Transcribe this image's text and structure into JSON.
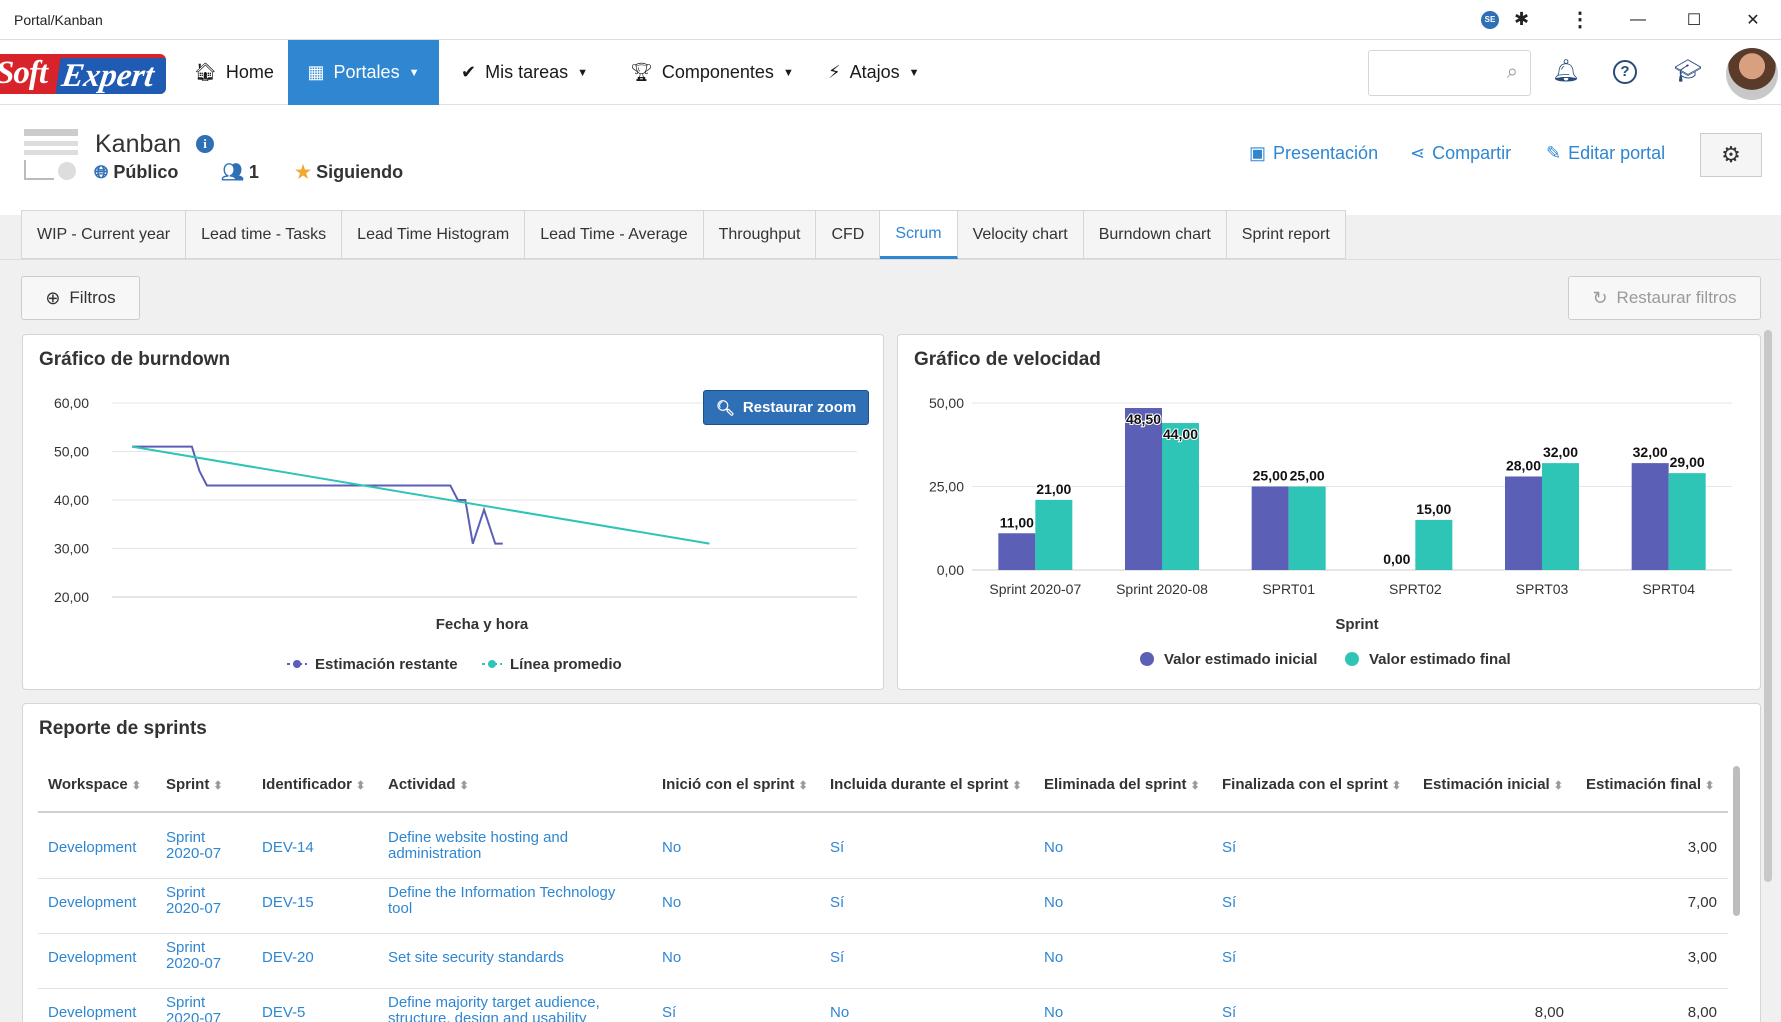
{
  "window": {
    "title": "Portal/Kanban",
    "badge": "SE"
  },
  "nav": {
    "logo_part1": "Soft",
    "logo_part2": "Expert",
    "items": [
      {
        "label": "Home"
      },
      {
        "label": "Portales"
      },
      {
        "label": "Mis tareas"
      },
      {
        "label": "Componentes"
      },
      {
        "label": "Atajos"
      }
    ],
    "search_placeholder": ""
  },
  "header": {
    "title": "Kanban",
    "visibility": "Público",
    "members": "1",
    "following": "Siguiendo",
    "actions": [
      "Presentación",
      "Compartir",
      "Editar portal"
    ]
  },
  "tabs": [
    {
      "label": "WIP - Current year"
    },
    {
      "label": "Lead time - Tasks"
    },
    {
      "label": "Lead Time Histogram"
    },
    {
      "label": "Lead Time - Average"
    },
    {
      "label": "Throughput"
    },
    {
      "label": "CFD"
    },
    {
      "label": "Scrum",
      "active": true
    },
    {
      "label": "Velocity chart"
    },
    {
      "label": "Burndown chart"
    },
    {
      "label": "Sprint report"
    }
  ],
  "filters": {
    "filtros": "Filtros",
    "restore": "Restaurar filtros"
  },
  "chart_data": [
    {
      "type": "line",
      "title": "Gráfico de burndown",
      "xlabel": "Fecha y hora",
      "ylabel": "",
      "ylim": [
        20,
        60
      ],
      "yticks": [
        "60,00",
        "50,00",
        "40,00",
        "30,00",
        "20,00"
      ],
      "zoom_button": "Restaurar zoom",
      "series": [
        {
          "name": "Estimación restante",
          "color": "#5b5fb5",
          "x": [
            0,
            0.16,
            0.18,
            0.2,
            0.85,
            0.87,
            0.89,
            0.91,
            0.94,
            0.97,
            0.99
          ],
          "values": [
            51,
            51,
            46,
            43,
            43,
            40,
            40,
            31,
            38,
            31,
            31
          ]
        },
        {
          "name": "Línea promedio",
          "color": "#2ec4b6",
          "x": [
            0,
            1.65
          ],
          "values": [
            51,
            31
          ]
        }
      ]
    },
    {
      "type": "bar",
      "title": "Gráfico de velocidad",
      "xlabel": "Sprint",
      "ylabel": "",
      "ylim": [
        0,
        50
      ],
      "yticks": [
        "50,00",
        "25,00",
        "0,00"
      ],
      "categories": [
        "Sprint 2020-07",
        "Sprint 2020-08",
        "SPRT01",
        "SPRT02",
        "SPRT03",
        "SPRT04"
      ],
      "series": [
        {
          "name": "Valor estimado inicial",
          "color": "#5b5fb5",
          "values": [
            11,
            48.5,
            25,
            0,
            28,
            32
          ],
          "labels": [
            "11,00",
            "48,50",
            "25,00",
            "0,00",
            "28,00",
            "32,00"
          ]
        },
        {
          "name": "Valor estimado final",
          "color": "#2ec4b6",
          "values": [
            21,
            44,
            25,
            15,
            32,
            29
          ],
          "labels": [
            "21,00",
            "44,00",
            "25,00",
            "15,00",
            "32,00",
            "29,00"
          ]
        }
      ]
    }
  ],
  "report": {
    "title": "Reporte de sprints",
    "columns": [
      "Workspace",
      "Sprint",
      "Identificador",
      "Actividad",
      "Inició con el sprint",
      "Incluida durante el sprint",
      "Eliminada del sprint",
      "Finalizada con el sprint",
      "Estimación inicial",
      "Estimación final"
    ],
    "rows": [
      {
        "workspace": "Development",
        "sprint": [
          "Sprint",
          "2020-07"
        ],
        "id": "DEV-14",
        "activity": [
          "Define website hosting and",
          "administration"
        ],
        "start": "No",
        "included": "Sí",
        "removed": "No",
        "finished": "Sí",
        "est_initial": "",
        "est_final": "3,00"
      },
      {
        "workspace": "Development",
        "sprint": [
          "Sprint",
          "2020-07"
        ],
        "id": "DEV-15",
        "activity": [
          "Define the Information Technology",
          "tool"
        ],
        "start": "No",
        "included": "Sí",
        "removed": "No",
        "finished": "Sí",
        "est_initial": "",
        "est_final": "7,00"
      },
      {
        "workspace": "Development",
        "sprint": [
          "Sprint",
          "2020-07"
        ],
        "id": "DEV-20",
        "activity": [
          "Set site security standards",
          ""
        ],
        "start": "No",
        "included": "Sí",
        "removed": "No",
        "finished": "Sí",
        "est_initial": "",
        "est_final": "3,00"
      },
      {
        "workspace": "Development",
        "sprint": [
          "Sprint",
          "2020-07"
        ],
        "id": "DEV-5",
        "activity": [
          "Define majority target audience,",
          "structure, design and usability"
        ],
        "start": "Sí",
        "included": "No",
        "removed": "No",
        "finished": "Sí",
        "est_initial": "8,00",
        "est_final": "8,00"
      }
    ]
  }
}
